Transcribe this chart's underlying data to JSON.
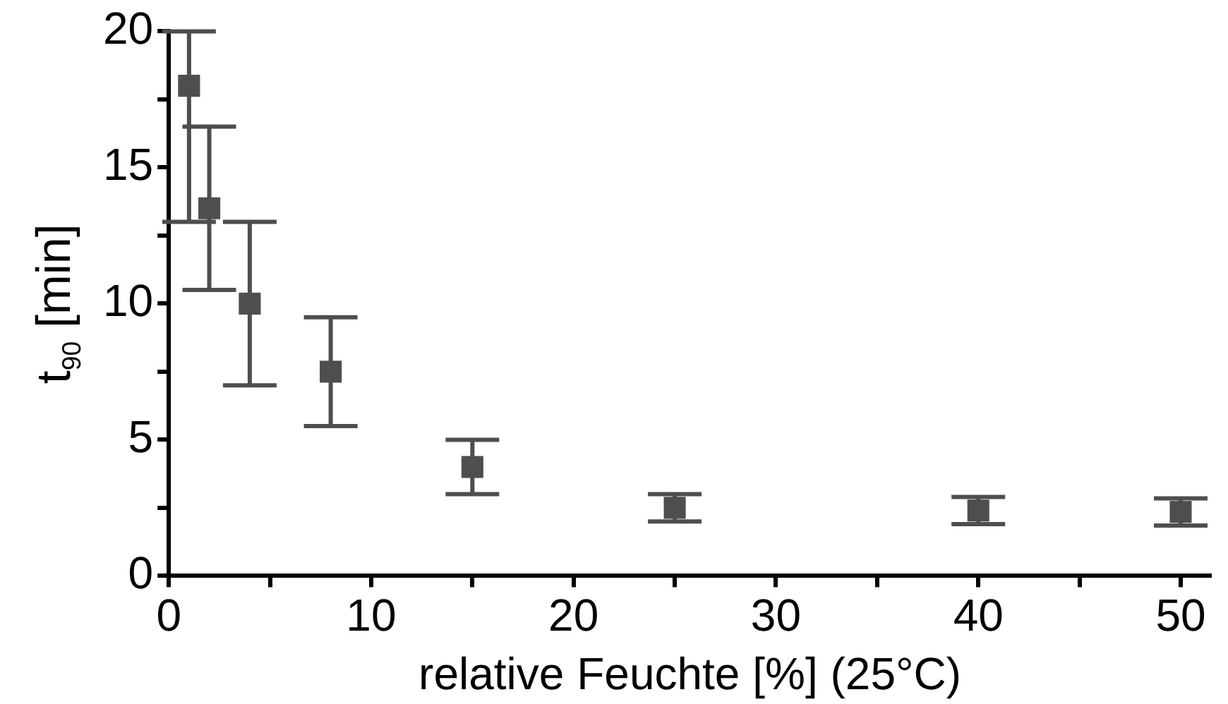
{
  "chart_data": {
    "type": "scatter",
    "xlabel": "relative Feuchte [%] (25°C)",
    "ylabel": "t$_{90}$ [min]",
    "x": [
      1,
      2,
      4,
      8,
      15,
      25,
      40,
      50
    ],
    "series": [
      {
        "color": "#4d4f4d",
        "values": [
          18,
          13.5,
          10,
          7.5,
          4,
          2.5,
          2.4,
          2.35
        ],
        "errors": [
          [
            13,
            20
          ],
          3,
          3,
          2,
          1,
          0.5,
          0.5,
          0.5
        ]
      }
    ],
    "marker": "square",
    "xlim": [
      0,
      51.5
    ],
    "xticks": [
      0,
      {
        "value": 5,
        "label": null
      },
      10,
      {
        "value": 15,
        "label": null
      },
      20,
      {
        "value": 25,
        "label": null
      },
      30,
      {
        "value": 35,
        "label": null
      },
      40,
      {
        "value": 45,
        "label": null
      },
      50
    ],
    "ylim": [
      0,
      20
    ],
    "yticks": [
      0,
      {
        "value": 2.5,
        "label": null
      },
      5,
      {
        "value": 7.5,
        "label": null
      },
      10,
      {
        "value": 12.5,
        "label": null
      },
      15,
      {
        "value": 17.5,
        "label": null
      },
      20
    ],
    "grid": false,
    "legend": false
  }
}
